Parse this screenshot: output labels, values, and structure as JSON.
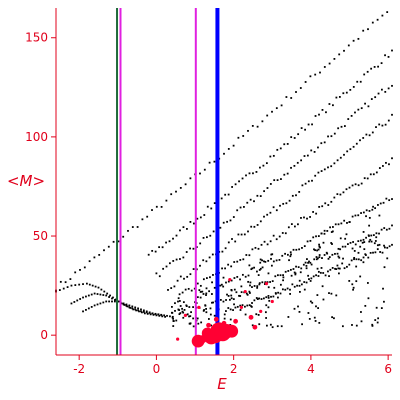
{
  "chart_data": {
    "type": "scatter",
    "xlabel": "E",
    "ylabel": "<M>",
    "xlim": [
      -2.6,
      6.1
    ],
    "ylim": [
      -10,
      165
    ],
    "x_ticks": [
      -2,
      0,
      2,
      4,
      6
    ],
    "y_ticks": [
      0,
      50,
      100,
      150
    ],
    "tick_labels_x": [
      "-2",
      "0",
      "2",
      "4",
      "6"
    ],
    "tick_labels_y": [
      "0",
      "50",
      "100",
      "150"
    ],
    "grid": false,
    "legend": "none",
    "colors": {
      "axis": "#e0001b",
      "points": "#000000",
      "highlight": "#ff0033",
      "line_dark": "#1f6b3a",
      "line_magenta": "#e020e0",
      "line_blue": "#0000ff"
    },
    "vertical_lines": [
      {
        "x": -1.02,
        "color": "#1f6b3a",
        "width": 2
      },
      {
        "x": -0.93,
        "color": "#e020e0",
        "width": 2
      },
      {
        "x": 1.02,
        "color": "#e020e0",
        "width": 2
      },
      {
        "x": 1.58,
        "color": "#0000ff",
        "width": 4
      }
    ],
    "series": [
      {
        "kind": "bands",
        "color": "#000000",
        "curves": [
          {
            "x_start": -2.6,
            "x_end": 6.1,
            "y_start": 24,
            "y_end": 165,
            "a": 15,
            "x_turn": -0.3
          },
          {
            "x_start": -0.2,
            "x_end": 6.1,
            "y_start": 40,
            "y_end": 143,
            "a": 0,
            "x_turn": 0
          },
          {
            "x_start": 0.0,
            "x_end": 6.1,
            "y_start": 30,
            "y_end": 127,
            "a": 0,
            "x_turn": 0
          },
          {
            "x_start": 0.3,
            "x_end": 6.1,
            "y_start": 24,
            "y_end": 110,
            "a": 0,
            "x_turn": 0
          },
          {
            "x_start": 0.6,
            "x_end": 6.1,
            "y_start": 20,
            "y_end": 88,
            "a": 0,
            "x_turn": 0
          },
          {
            "x_start": 1.0,
            "x_end": 6.1,
            "y_start": 18,
            "y_end": 70,
            "a": 0,
            "x_turn": 0
          },
          {
            "x_start": 1.4,
            "x_end": 6.1,
            "y_start": 15,
            "y_end": 55,
            "a": 0,
            "x_turn": 0
          },
          {
            "x_start": 1.8,
            "x_end": 6.1,
            "y_start": 12,
            "y_end": 45,
            "a": 0,
            "x_turn": 0
          }
        ],
        "left_arcs": [
          {
            "x": [
              -2.6,
              -2.2,
              -1.8,
              -1.5,
              -1.2,
              -0.9,
              -0.6,
              -0.3,
              0.0,
              0.3
            ],
            "y": [
              22,
              25,
              26,
              24,
              20,
              16,
              13,
              11,
              10,
              9
            ]
          },
          {
            "x": [
              -2.2,
              -1.9,
              -1.6,
              -1.3,
              -1.0,
              -0.7,
              -0.4,
              -0.1,
              0.2
            ],
            "y": [
              16,
              19,
              21,
              20,
              17,
              14,
              12,
              11,
              10
            ]
          },
          {
            "x": [
              -1.9,
              -1.6,
              -1.3,
              -1.0,
              -0.7,
              -0.4,
              -0.1,
              0.2,
              0.5
            ],
            "y": [
              12,
              15,
              17,
              17,
              15,
              13,
              11,
              10,
              9
            ]
          }
        ]
      },
      {
        "kind": "highlight",
        "color": "#ff0033",
        "points": [
          {
            "x": 1.08,
            "y": -3,
            "s": 8
          },
          {
            "x": 1.2,
            "y": -2,
            "s": 5
          },
          {
            "x": 1.32,
            "y": 1,
            "s": 7
          },
          {
            "x": 1.42,
            "y": -1,
            "s": 9
          },
          {
            "x": 1.52,
            "y": 0,
            "s": 10
          },
          {
            "x": 1.62,
            "y": 2,
            "s": 11
          },
          {
            "x": 1.72,
            "y": 1,
            "s": 10
          },
          {
            "x": 1.82,
            "y": 2,
            "s": 9
          },
          {
            "x": 1.95,
            "y": 2,
            "s": 8
          },
          {
            "x": 1.35,
            "y": 5,
            "s": 3
          },
          {
            "x": 1.55,
            "y": 8,
            "s": 3
          },
          {
            "x": 1.75,
            "y": 6,
            "s": 3
          },
          {
            "x": 2.05,
            "y": 7,
            "s": 3
          },
          {
            "x": 2.55,
            "y": 4,
            "s": 3
          },
          {
            "x": 2.45,
            "y": 9,
            "s": 3
          },
          {
            "x": 2.2,
            "y": 14,
            "s": 2
          },
          {
            "x": 2.7,
            "y": 12,
            "s": 2
          },
          {
            "x": 3.0,
            "y": 17,
            "s": 2
          },
          {
            "x": 2.3,
            "y": 22,
            "s": 2
          },
          {
            "x": 2.85,
            "y": 26,
            "s": 2
          },
          {
            "x": 1.9,
            "y": 28,
            "s": 2
          },
          {
            "x": 0.75,
            "y": 10,
            "s": 2
          },
          {
            "x": 0.55,
            "y": -2,
            "s": 2
          },
          {
            "x": 1.1,
            "y": 14,
            "s": 2
          }
        ]
      }
    ]
  }
}
